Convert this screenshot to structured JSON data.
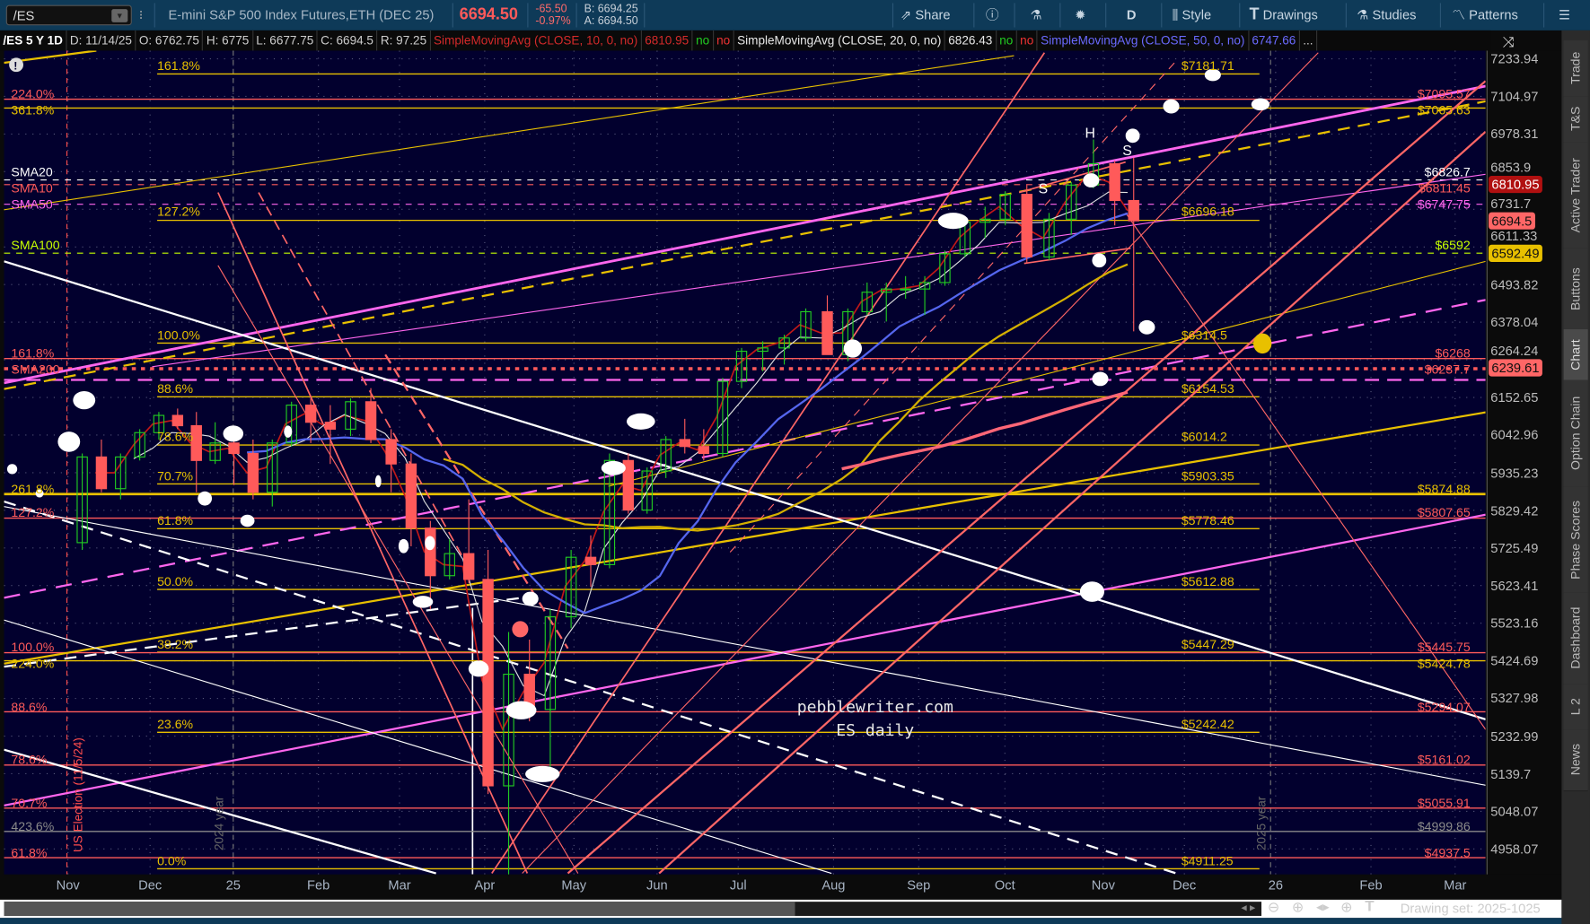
{
  "toolbar": {
    "symbol": "/ES",
    "description": "E-mini S&P 500 Index Futures,ETH (DEC 25)",
    "last": "6694.50",
    "change": "-65.50",
    "change_pct": "-0.97%",
    "bid": "B: 6694.25",
    "ask": "A: 6694.50",
    "share": "Share",
    "period": "D",
    "style": "Style",
    "drawings": "Drawings",
    "studies": "Studies",
    "patterns": "Patterns",
    "icons": [
      "share-icon",
      "info-icon",
      "flask-icon",
      "gear-icon",
      "candle-icon",
      "text-icon",
      "studies-flask-icon",
      "patterns-icon",
      "menu-icon"
    ]
  },
  "infobar": {
    "title": "/ES 5 Y 1D",
    "date": "D: 11/14/25",
    "open": "O: 6762.75",
    "high": "H: 6775",
    "low": "L: 6677.75",
    "close": "C: 6694.5",
    "range": "R: 97.25",
    "studies": [
      {
        "name": "SimpleMovingAvg (CLOSE, 10, 0, no)",
        "value": "6810.95",
        "f1": "no",
        "f2": "no",
        "color": "#d42a2a"
      },
      {
        "name": "SimpleMovingAvg (CLOSE, 20, 0, no)",
        "value": "6826.43",
        "f1": "no",
        "f2": "no",
        "color": "#e8e8e8"
      },
      {
        "name": "SimpleMovingAvg (CLOSE, 50, 0, no)",
        "value": "6747.66",
        "f1": "",
        "f2": "",
        "color": "#6a6aff"
      }
    ],
    "more": "..."
  },
  "sidebar": {
    "tabs": [
      "Trade",
      "T&S",
      "Active Trader",
      "Buttons",
      "Chart",
      "Option Chain",
      "Phase Scores",
      "Dashboard",
      "L 2",
      "News"
    ],
    "active": "Chart"
  },
  "footer": {
    "drawing_set": "Drawing set: 2025-1025"
  },
  "watermark": {
    "line1": "pebblewriter.com",
    "line2": "ES daily"
  },
  "annotations": {
    "election": "US Election (11/5/24)",
    "year2024": "2024 year",
    "year2025": "2025 year",
    "hs": [
      "S",
      "H",
      "S"
    ]
  },
  "chart_data": {
    "type": "candlestick",
    "instrument": "/ES",
    "timeframe": "1D",
    "y_scale": "log",
    "ylim": [
      4958.07,
      7233.94
    ],
    "y_ticks": [
      "7233.94",
      "7104.97",
      "6978.31",
      "6853.9",
      "6731.7",
      "6611.33",
      "6493.82",
      "6378.04",
      "6264.24",
      "6152.65",
      "6042.96",
      "5935.23",
      "5829.42",
      "5725.49",
      "5623.41",
      "5523.16",
      "5424.69",
      "5327.98",
      "5232.99",
      "5139.7",
      "5048.07",
      "4958.07"
    ],
    "x_ticks": [
      "Nov",
      "Dec",
      "25",
      "Feb",
      "Mar",
      "Apr",
      "May",
      "Jun",
      "Jul",
      "Aug",
      "Sep",
      "Oct",
      "Nov",
      "Dec",
      "26",
      "Feb",
      "Mar"
    ],
    "grid": true,
    "candles": [
      [
        "2024-11-04",
        5740,
        5990,
        5720,
        5980
      ],
      [
        "2024-11-11",
        5980,
        6030,
        5880,
        5890
      ],
      [
        "2024-11-18",
        5890,
        5990,
        5860,
        5980
      ],
      [
        "2024-11-25",
        5980,
        6060,
        5970,
        6050
      ],
      [
        "2024-12-02",
        6050,
        6110,
        6030,
        6100
      ],
      [
        "2024-12-09",
        6100,
        6120,
        6060,
        6070
      ],
      [
        "2024-12-16",
        6070,
        6110,
        5880,
        5970
      ],
      [
        "2024-12-23",
        5970,
        6080,
        5960,
        6020
      ],
      [
        "2024-12-30",
        6020,
        6040,
        5900,
        5990
      ],
      [
        "2025-01-06",
        5990,
        6030,
        5860,
        5880
      ],
      [
        "2025-01-13",
        5880,
        6030,
        5840,
        6020
      ],
      [
        "2025-01-20",
        6020,
        6140,
        6010,
        6130
      ],
      [
        "2025-01-27",
        6130,
        6150,
        6020,
        6080
      ],
      [
        "2025-02-03",
        6080,
        6130,
        5960,
        6060
      ],
      [
        "2025-02-10",
        6060,
        6150,
        6040,
        6140
      ],
      [
        "2025-02-17",
        6140,
        6180,
        6020,
        6030
      ],
      [
        "2025-02-24",
        6030,
        6060,
        5880,
        5960
      ],
      [
        "2025-03-03",
        5960,
        5990,
        5730,
        5780
      ],
      [
        "2025-03-10",
        5780,
        5800,
        5560,
        5650
      ],
      [
        "2025-03-17",
        5650,
        5750,
        5640,
        5710
      ],
      [
        "2025-03-24",
        5710,
        5860,
        5630,
        5640
      ],
      [
        "2025-03-31",
        5640,
        5720,
        5090,
        5110
      ],
      [
        "2025-04-07",
        5110,
        5500,
        4830,
        5390
      ],
      [
        "2025-04-14",
        5390,
        5480,
        5270,
        5300
      ],
      [
        "2025-04-21",
        5300,
        5560,
        5140,
        5540
      ],
      [
        "2025-04-28",
        5540,
        5720,
        5510,
        5700
      ],
      [
        "2025-05-05",
        5700,
        5760,
        5620,
        5680
      ],
      [
        "2025-05-12",
        5680,
        5990,
        5670,
        5970
      ],
      [
        "2025-05-19",
        5970,
        5990,
        5820,
        5830
      ],
      [
        "2025-05-26",
        5830,
        5950,
        5820,
        5940
      ],
      [
        "2025-06-02",
        5940,
        6040,
        5920,
        6030
      ],
      [
        "2025-06-09",
        6030,
        6090,
        5990,
        6010
      ],
      [
        "2025-06-16",
        6010,
        6060,
        5970,
        5990
      ],
      [
        "2025-06-23",
        5990,
        6210,
        5980,
        6200
      ],
      [
        "2025-06-30",
        6200,
        6300,
        6180,
        6290
      ],
      [
        "2025-07-07",
        6290,
        6320,
        6230,
        6300
      ],
      [
        "2025-07-14",
        6300,
        6340,
        6250,
        6330
      ],
      [
        "2025-07-21",
        6330,
        6420,
        6320,
        6410
      ],
      [
        "2025-07-28",
        6410,
        6460,
        6280,
        6280
      ],
      [
        "2025-08-04",
        6280,
        6420,
        6260,
        6410
      ],
      [
        "2025-08-11",
        6410,
        6500,
        6400,
        6470
      ],
      [
        "2025-08-18",
        6470,
        6500,
        6380,
        6480
      ],
      [
        "2025-08-25",
        6480,
        6520,
        6450,
        6480
      ],
      [
        "2025-09-01",
        6480,
        6520,
        6400,
        6500
      ],
      [
        "2025-09-08",
        6500,
        6600,
        6490,
        6590
      ],
      [
        "2025-09-15",
        6590,
        6700,
        6580,
        6690
      ],
      [
        "2025-09-22",
        6690,
        6740,
        6640,
        6700
      ],
      [
        "2025-09-29",
        6700,
        6790,
        6680,
        6780
      ],
      [
        "2025-10-06",
        6780,
        6810,
        6560,
        6580
      ],
      [
        "2025-10-13",
        6580,
        6720,
        6570,
        6700
      ],
      [
        "2025-10-20",
        6700,
        6820,
        6650,
        6810
      ],
      [
        "2025-10-27",
        6810,
        6960,
        6800,
        6880
      ],
      [
        "2025-11-03",
        6880,
        6890,
        6680,
        6760
      ],
      [
        "2025-11-10",
        6760,
        6900,
        6350,
        6694.5
      ]
    ],
    "moving_averages": [
      {
        "label": "SMA10",
        "value": "$6811.45",
        "price": 6811.45,
        "color": "#ff5a5a"
      },
      {
        "label": "SMA20",
        "value": "$6826.7",
        "price": 6826.7,
        "color": "#ffffff"
      },
      {
        "label": "SMA50",
        "value": "$6747.75",
        "price": 6747.75,
        "color": "#ff66ee"
      },
      {
        "label": "SMA100",
        "value": "$6592",
        "price": 6592,
        "color": "#c8ff00"
      },
      {
        "label": "SMA200",
        "value": "$6237.7",
        "price": 6237.7,
        "color": "#ff5a5a"
      }
    ],
    "fib_primary": [
      {
        "pct": "161.8%",
        "value": "$7181.71",
        "price": 7181.71
      },
      {
        "pct": "127.2%",
        "value": "$6696.18",
        "price": 6696.18
      },
      {
        "pct": "100.0%",
        "value": "$6314.5",
        "price": 6314.5
      },
      {
        "pct": "88.6%",
        "value": "$6154.53",
        "price": 6154.53
      },
      {
        "pct": "78.6%",
        "value": "$6014.2",
        "price": 6014.2
      },
      {
        "pct": "70.7%",
        "value": "$5903.35",
        "price": 5903.35
      },
      {
        "pct": "61.8%",
        "value": "$5778.46",
        "price": 5778.46
      },
      {
        "pct": "50.0%",
        "value": "$5612.88",
        "price": 5612.88
      },
      {
        "pct": "38.2%",
        "value": "$5447.29",
        "price": 5447.29
      },
      {
        "pct": "23.6%",
        "value": "$5242.42",
        "price": 5242.42
      },
      {
        "pct": "0.0%",
        "value": "$4911.25",
        "price": 4911.25
      }
    ],
    "fib_secondary": [
      {
        "pct": "224.0%",
        "value": "$7095.57",
        "price": 7095.57,
        "color": "#ff5a5a"
      },
      {
        "pct": "361.8%",
        "value": "$7065.63",
        "price": 7065.63,
        "color": "#e8c000"
      },
      {
        "pct": "161.8%",
        "value": "$6268",
        "price": 6268,
        "color": "#ff5a5a"
      },
      {
        "pct": "261.8%",
        "value": "$5874.88",
        "price": 5874.88,
        "color": "#e8c000"
      },
      {
        "pct": "127.2%",
        "value": "$5807.65",
        "price": 5807.65,
        "color": "#ff5a5a"
      },
      {
        "pct": "100.0%",
        "value": "$5445.75",
        "price": 5445.75,
        "color": "#ff5a5a"
      },
      {
        "pct": "224.0%",
        "value": "$5424.78",
        "price": 5424.78,
        "color": "#e8c000"
      },
      {
        "pct": "88.6%",
        "value": "$5294.07",
        "price": 5294.07,
        "color": "#ff5a5a"
      },
      {
        "pct": "78.6%",
        "value": "$5161.02",
        "price": 5161.02,
        "color": "#ff5a5a"
      },
      {
        "pct": "70.7%",
        "value": "$5055.91",
        "price": 5055.91,
        "color": "#ff5a5a"
      },
      {
        "pct": "423.6%",
        "value": "$4999.86",
        "price": 4999.86,
        "color": "#8a8a8a"
      },
      {
        "pct": "61.8%",
        "value": "$4937.5",
        "price": 4937.5,
        "color": "#ff5a5a"
      }
    ],
    "price_tags": [
      {
        "value": "6810.95",
        "price": 6810.95,
        "bg": "#b01010",
        "fg": "#ffffff"
      },
      {
        "value": "6694.5",
        "price": 6694.5,
        "bg": "#ff6666",
        "fg": "#111111"
      },
      {
        "value": "6592.49",
        "price": 6592.49,
        "bg": "#e8c000",
        "fg": "#111111"
      },
      {
        "value": "6239.61",
        "price": 6239.61,
        "bg": "#ff6666",
        "fg": "#111111"
      }
    ],
    "colors": {
      "background": "#02002e",
      "up": "#22cc22",
      "down": "#ff5a5a"
    }
  }
}
